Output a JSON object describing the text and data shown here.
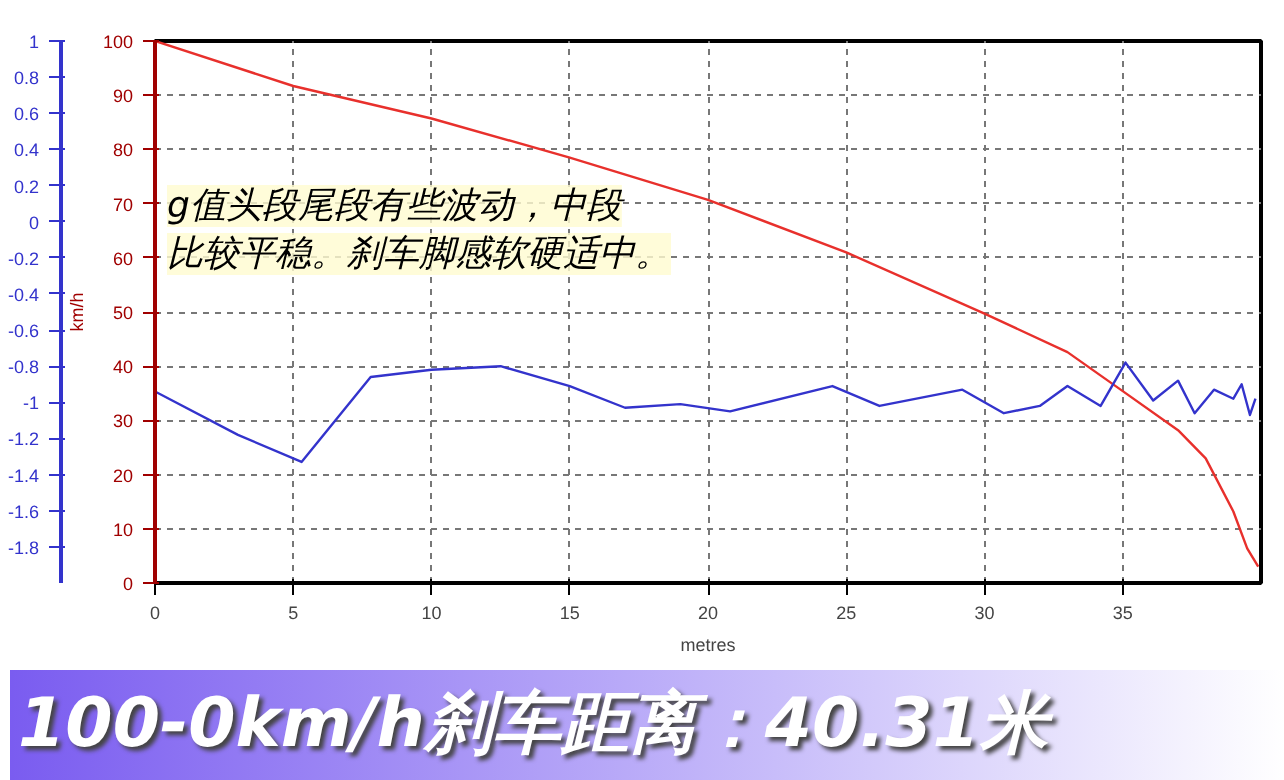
{
  "chart_data": {
    "type": "line",
    "title": "100-0km/h刹车距离：40.31米",
    "xlabel": "metres",
    "ylabel": "km/h",
    "annotations": [
      "g值头段尾段有些波动，中段",
      "比较平稳。刹车脚感软硬适中。"
    ],
    "xlim": [
      0,
      40
    ],
    "xticks": [
      0,
      5,
      10,
      15,
      20,
      25,
      30,
      35
    ],
    "ylim": [
      0,
      100
    ],
    "yticks": [
      0,
      10,
      20,
      30,
      40,
      50,
      60,
      70,
      80,
      90,
      100
    ],
    "y2lim": [
      -2,
      1
    ],
    "y2ticks": [
      -1.8,
      -1.6,
      -1.4,
      -1.2,
      -1,
      -0.8,
      -0.6,
      -0.4,
      -0.2,
      0,
      0.2,
      0.4,
      0.6,
      0.8,
      1
    ],
    "grid": true,
    "line_style": "solid",
    "marker": "none",
    "series": [
      {
        "color": "#e8302c",
        "x": [
          0,
          5,
          10,
          15,
          20,
          25,
          30,
          33,
          35,
          37,
          38,
          39,
          39.5,
          39.9
        ],
        "values": [
          100,
          91.7,
          85.7,
          78.5,
          70.7,
          61,
          49.7,
          42.6,
          35.4,
          28.2,
          23,
          13.2,
          6.4,
          3
        ]
      },
      {
        "color": "#3333cc",
        "axis": "y2",
        "x": [
          0,
          3,
          5.3,
          7.8,
          10,
          12.5,
          15,
          17,
          19,
          20.8,
          24.5,
          26.2,
          29.2,
          30.7,
          32,
          33,
          34.2,
          35.1,
          36.1,
          37,
          37.6,
          38.3,
          39,
          39.3,
          39.6,
          39.8
        ],
        "values": [
          -0.94,
          -1.18,
          -1.33,
          -0.86,
          -0.82,
          -0.8,
          -0.91,
          -1.03,
          -1.01,
          -1.05,
          -0.91,
          -1.02,
          -0.93,
          -1.06,
          -1.02,
          -0.91,
          -1.02,
          -0.78,
          -0.99,
          -0.88,
          -1.06,
          -0.93,
          -0.98,
          -0.9,
          -1.07,
          -0.98
        ]
      }
    ]
  }
}
